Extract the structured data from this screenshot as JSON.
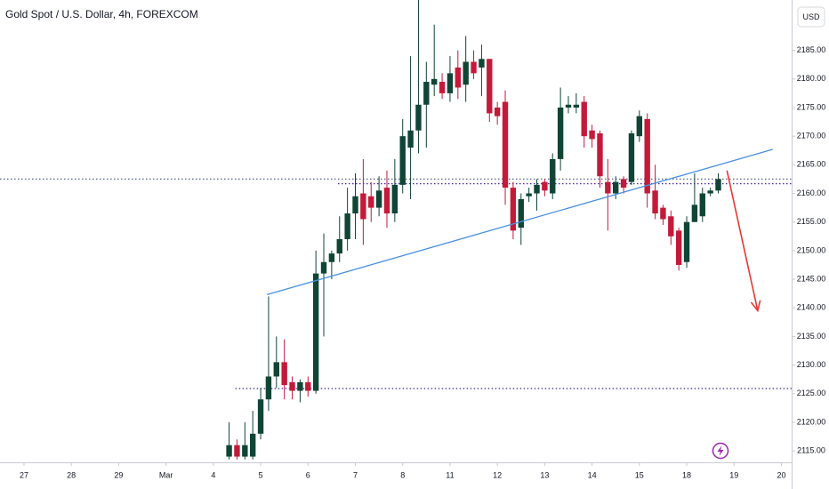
{
  "chart_data": {
    "type": "candlestick",
    "title": "Gold Spot / U.S. Dollar, 4h, FOREXCOM",
    "currency": "USD",
    "up_color": "#104535",
    "down_color": "#c41a3a",
    "x": [
      26,
      27,
      28,
      29,
      30,
      31,
      32,
      33,
      34,
      35,
      36,
      37,
      38,
      39,
      40,
      41,
      42,
      43,
      44,
      45,
      46,
      47,
      48,
      49,
      50,
      51,
      52,
      53,
      54,
      55,
      56,
      57,
      58,
      59,
      60,
      61,
      62,
      63,
      64,
      65,
      66,
      67,
      68,
      69,
      70,
      71,
      72,
      73,
      74,
      75,
      76,
      77,
      78,
      79,
      80,
      81,
      82,
      83,
      84,
      85,
      86,
      87,
      88
    ],
    "open": [
      2114,
      2116,
      2114,
      2114,
      2118,
      2124,
      2128,
      2130.5,
      2127,
      2125.5,
      2127,
      2125.5,
      2146,
      2148,
      2149.5,
      2152,
      2156.5,
      2160,
      2159.5,
      2157.5,
      2161,
      2156.5,
      2161.5,
      2168,
      2171,
      2175.5,
      2179,
      2179.5,
      2177.5,
      2182,
      2179,
      2183,
      2182,
      2183.5,
      2175,
      2176,
      2161,
      2154,
      2159.5,
      2160,
      2162,
      2160,
      2166,
      2175,
      2175,
      2176,
      2171,
      2170.5,
      2162,
      2160,
      2162.5,
      2162,
      2170,
      2173,
      2160.5,
      2157.5,
      2156,
      2153.5,
      2148,
      2155,
      2156,
      2160,
      2160.5
    ],
    "high": [
      2120,
      2117,
      2120,
      2122,
      2126,
      2142,
      2135,
      2134.5,
      2128,
      2127.5,
      2128,
      2150,
      2153,
      2150,
      2156,
      2161,
      2163.5,
      2166,
      2162,
      2163,
      2164,
      2166,
      2173,
      2184,
      2194,
      2183,
      2189.5,
      2181,
      2184,
      2185,
      2187.5,
      2185,
      2186,
      2183.5,
      2176,
      2178,
      2162,
      2160,
      2161,
      2162.5,
      2162.5,
      2167,
      2178.5,
      2177,
      2177.5,
      2177,
      2172,
      2171,
      2166,
      2163,
      2163,
      2171,
      2174.5,
      2174,
      2165,
      2158,
      2157,
      2154,
      2156,
      2163.5,
      2161,
      2161,
      2163.5
    ],
    "low": [
      2113.5,
      2113.5,
      2113.5,
      2113.5,
      2117,
      2122,
      2126,
      2124,
      2124,
      2123.5,
      2124.5,
      2125,
      2135,
      2145,
      2148,
      2150,
      2152,
      2151,
      2155,
      2156,
      2154,
      2155,
      2160,
      2159,
      2167,
      2168,
      2177,
      2176.5,
      2176,
      2176.5,
      2176,
      2180,
      2177,
      2172.5,
      2172,
      2158,
      2152,
      2151,
      2158.5,
      2157,
      2159.5,
      2159,
      2164,
      2174,
      2174,
      2168,
      2168,
      2161,
      2153.5,
      2159,
      2160,
      2161.5,
      2169,
      2157.5,
      2155.5,
      2154.5,
      2151,
      2146.5,
      2147,
      2155,
      2155,
      2159.5,
      2160
    ],
    "close": [
      2116,
      2114,
      2116,
      2118,
      2124,
      2128,
      2130.5,
      2126.5,
      2125.5,
      2127,
      2125.5,
      2146,
      2148,
      2149.5,
      2152,
      2156.5,
      2159.5,
      2155.5,
      2157.5,
      2160.5,
      2156.5,
      2161.5,
      2170,
      2171,
      2175.5,
      2179.5,
      2180,
      2177.5,
      2181,
      2178.5,
      2183,
      2181,
      2183.5,
      2174,
      2173.5,
      2161,
      2153.5,
      2159,
      2160,
      2161.5,
      2160.5,
      2166,
      2175,
      2175.5,
      2175.5,
      2170,
      2169.5,
      2163,
      2160,
      2162,
      2161,
      2170.5,
      2173.5,
      2160,
      2156.5,
      2155.5,
      2152.5,
      2147.5,
      2155,
      2158,
      2160,
      2160.5,
      2162.5
    ],
    "xlim": [
      -3.04,
      97.3
    ],
    "ylim": [
      2113,
      2193.8
    ],
    "xticks": [
      {
        "value": 0,
        "label": "27"
      },
      {
        "value": 6,
        "label": "28"
      },
      {
        "value": 12,
        "label": "29"
      },
      {
        "value": 18,
        "label": "Mar"
      },
      {
        "value": 24,
        "label": "4"
      },
      {
        "value": 30,
        "label": "5"
      },
      {
        "value": 36,
        "label": "6"
      },
      {
        "value": 42,
        "label": "7"
      },
      {
        "value": 48,
        "label": "8"
      },
      {
        "value": 54,
        "label": "11"
      },
      {
        "value": 60,
        "label": "12"
      },
      {
        "value": 66,
        "label": "13"
      },
      {
        "value": 72,
        "label": "14"
      },
      {
        "value": 78,
        "label": "15"
      },
      {
        "value": 84,
        "label": "18"
      },
      {
        "value": 90,
        "label": "19"
      },
      {
        "value": 96,
        "label": "20"
      }
    ],
    "yticks": [
      {
        "value": 2115,
        "label": "2115.00"
      },
      {
        "value": 2120,
        "label": "2120.00"
      },
      {
        "value": 2125,
        "label": "2125.00"
      },
      {
        "value": 2130,
        "label": "2130.00"
      },
      {
        "value": 2135,
        "label": "2135.00"
      },
      {
        "value": 2140,
        "label": "2140.00"
      },
      {
        "value": 2145,
        "label": "2145.00"
      },
      {
        "value": 2150,
        "label": "2150.00"
      },
      {
        "value": 2155,
        "label": "2155.00"
      },
      {
        "value": 2160,
        "label": "2160.00"
      },
      {
        "value": 2165,
        "label": "2165.00"
      },
      {
        "value": 2170,
        "label": "2170.00"
      },
      {
        "value": 2175,
        "label": "2175.00"
      },
      {
        "value": 2180,
        "label": "2180.00"
      },
      {
        "value": 2185,
        "label": "2185.00"
      }
    ],
    "trendline": {
      "x": [
        30.8,
        94.9
      ],
      "y": [
        2142.3,
        2167.7
      ],
      "color": "#4a90e2"
    },
    "arrow": {
      "x": [
        89.1,
        93.0
      ],
      "y": [
        2164,
        2139.5
      ],
      "color": "#e53935"
    },
    "levels": [
      {
        "y": 2162.5,
        "x_start": -3.04,
        "color": "#5a6a8a"
      },
      {
        "y": 2161.7,
        "x_start": 39.8,
        "color": "#4b2aa8"
      },
      {
        "y": 2125.9,
        "x_start": 26.8,
        "color": "#3b2a98"
      }
    ]
  }
}
